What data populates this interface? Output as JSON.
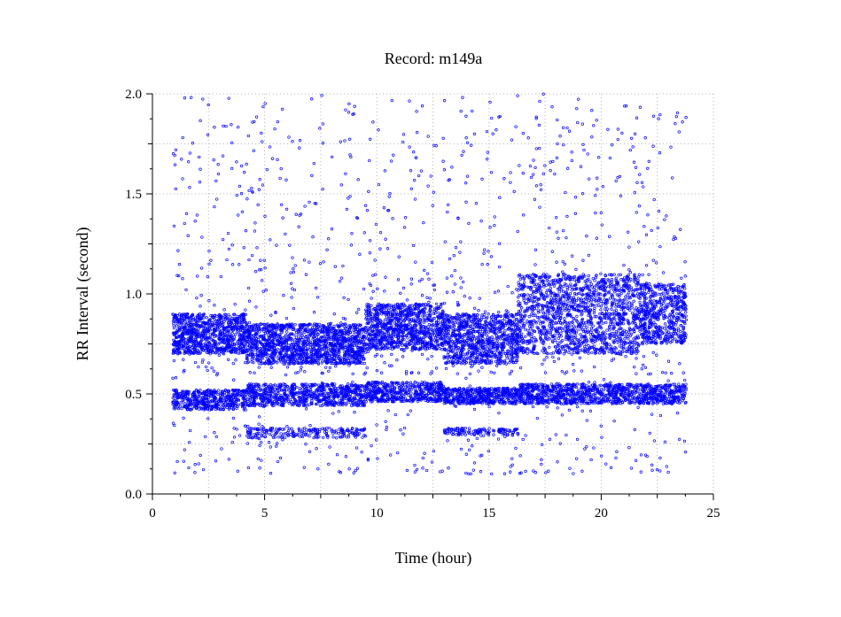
{
  "chart_data": {
    "type": "scatter",
    "title": "Record:  m149a",
    "xlabel": "Time (hour)",
    "ylabel": "RR Interval (second)",
    "xlim": [
      0,
      25
    ],
    "ylim": [
      0.0,
      2.0
    ],
    "xticks": [
      "0",
      "5",
      "10",
      "15",
      "20",
      "25"
    ],
    "yticks": [
      "0.0",
      "0.5",
      "1.0",
      "1.5",
      "2.0"
    ],
    "grid": true,
    "legend": "none",
    "marker_color": "#0000ff",
    "time_range_hours": [
      0.9,
      23.8
    ],
    "series": [
      {
        "points_summary": [
          {
            "x_from": 0.9,
            "x_to": 4.2,
            "bands": [
              [
                0.7,
                0.9
              ],
              [
                0.42,
                0.52
              ]
            ]
          },
          {
            "x_from": 4.2,
            "x_to": 9.5,
            "bands": [
              [
                0.65,
                0.85
              ],
              [
                0.44,
                0.55
              ],
              [
                0.28,
                0.33
              ]
            ]
          },
          {
            "x_from": 9.5,
            "x_to": 13.0,
            "bands": [
              [
                0.72,
                0.95
              ],
              [
                0.46,
                0.56
              ]
            ]
          },
          {
            "x_from": 13.0,
            "x_to": 16.3,
            "bands": [
              [
                0.65,
                0.9
              ],
              [
                0.45,
                0.53
              ],
              [
                0.29,
                0.33
              ]
            ]
          },
          {
            "x_from": 16.3,
            "x_to": 21.7,
            "bands": [
              [
                0.7,
                1.1
              ],
              [
                0.45,
                0.55
              ]
            ]
          },
          {
            "x_from": 21.7,
            "x_to": 23.8,
            "bands": [
              [
                0.75,
                1.05
              ],
              [
                0.45,
                0.55
              ]
            ]
          }
        ],
        "outlier_range": [
          0.1,
          2.0
        ]
      }
    ]
  }
}
